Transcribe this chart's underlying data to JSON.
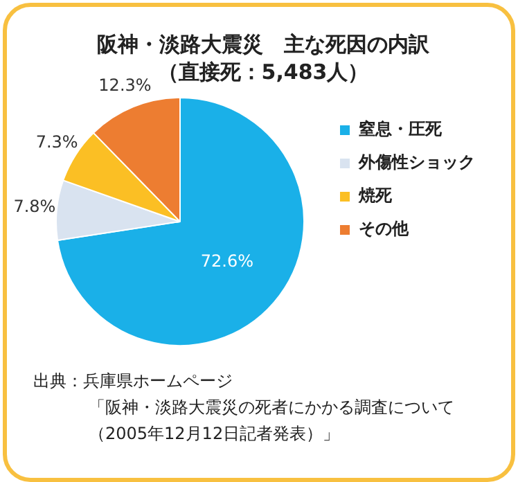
{
  "chart_data": {
    "type": "pie",
    "title": "阪神・淡路大震災　主な死因の内訳",
    "subtitle": "（直接死：5,483人）",
    "categories": [
      "窒息・圧死",
      "外傷性ショック",
      "焼死",
      "その他"
    ],
    "values": [
      72.6,
      7.8,
      7.3,
      12.3
    ],
    "colors": [
      "#1ab0e8",
      "#d9e3f0",
      "#fbbf24",
      "#ed7d31"
    ],
    "value_labels": [
      "72.6%",
      "7.8%",
      "7.3%",
      "12.3%"
    ],
    "legend": "right",
    "annotations": [
      "出典：兵庫県ホームページ",
      "「阪神・淡路大震災の死者にかかる調査について",
      "（2005年12月12日記者発表）」"
    ]
  }
}
